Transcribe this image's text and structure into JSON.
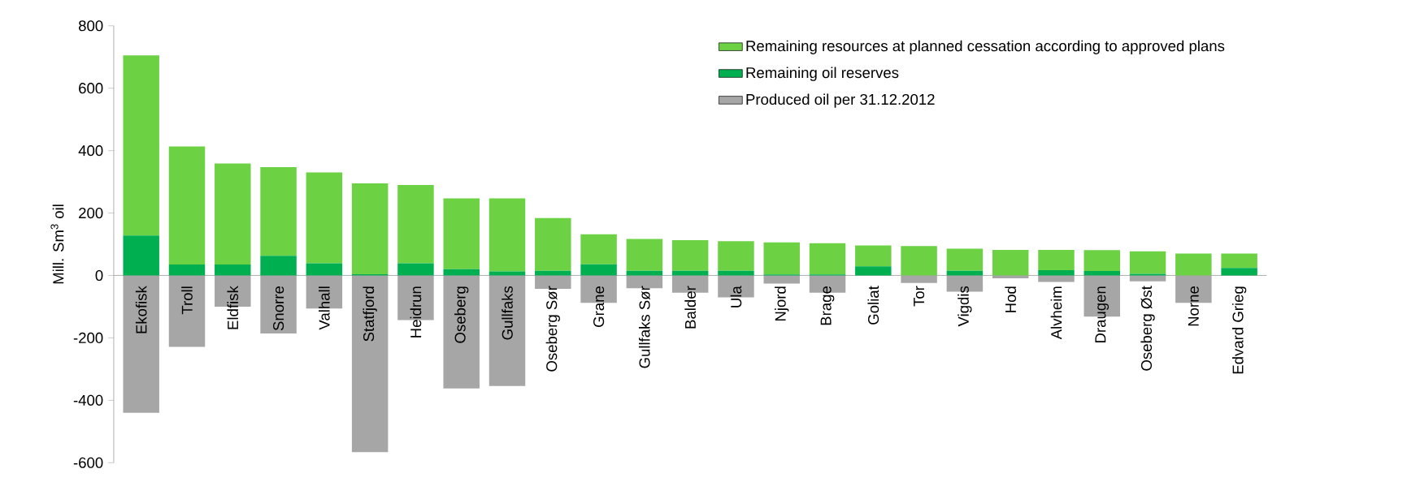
{
  "chart_data": {
    "type": "bar",
    "stacked": true,
    "ylabel": "Mill. Sm$^{3}$ oil",
    "categories": [
      "Ekofisk",
      "Troll",
      "Eldfisk",
      "Snorre",
      "Valhall",
      "Statfjord",
      "Heidrun",
      "Oseberg",
      "Gullfaks",
      "Oseberg Sør",
      "Grane",
      "Gullfaks Sør",
      "Balder",
      "Ula",
      "Njord",
      "Brage",
      "Goliat",
      "Tor",
      "Vigdis",
      "Hod",
      "Alvheim",
      "Draugen",
      "Oseberg Øst",
      "Norne",
      "Edvard Grieg"
    ],
    "series": [
      {
        "name": "Remaining oil reserves",
        "color": "#00b050",
        "values": [
          128,
          35,
          35,
          63,
          39,
          4,
          39,
          20,
          13,
          15,
          36,
          15,
          15,
          15,
          3,
          3,
          29,
          null,
          15,
          null,
          17,
          14,
          5,
          null,
          24
        ]
      },
      {
        "name": "Remaining resources at planned cessation according to approved plans",
        "color": "#6dd144",
        "values": [
          577,
          378,
          324,
          284,
          291,
          291,
          251,
          227,
          234,
          169,
          96,
          102,
          98,
          95,
          103,
          100,
          67,
          94,
          71,
          82,
          65,
          67,
          72,
          70,
          46
        ]
      },
      {
        "name": "Produced oil per 31.12.2012",
        "color": "#a6a6a6",
        "values": [
          -440,
          -229,
          -100,
          -186,
          -106,
          -566,
          -143,
          -362,
          -354,
          -43,
          -88,
          -41,
          -55,
          -70,
          -26,
          -55,
          0,
          -24,
          -52,
          -9,
          -21,
          -132,
          -19,
          -88,
          0
        ]
      }
    ],
    "ylim": [
      -600,
      800
    ],
    "yticks": [
      -600,
      -400,
      -200,
      0,
      200,
      400,
      600,
      800
    ],
    "legend": "top right"
  }
}
